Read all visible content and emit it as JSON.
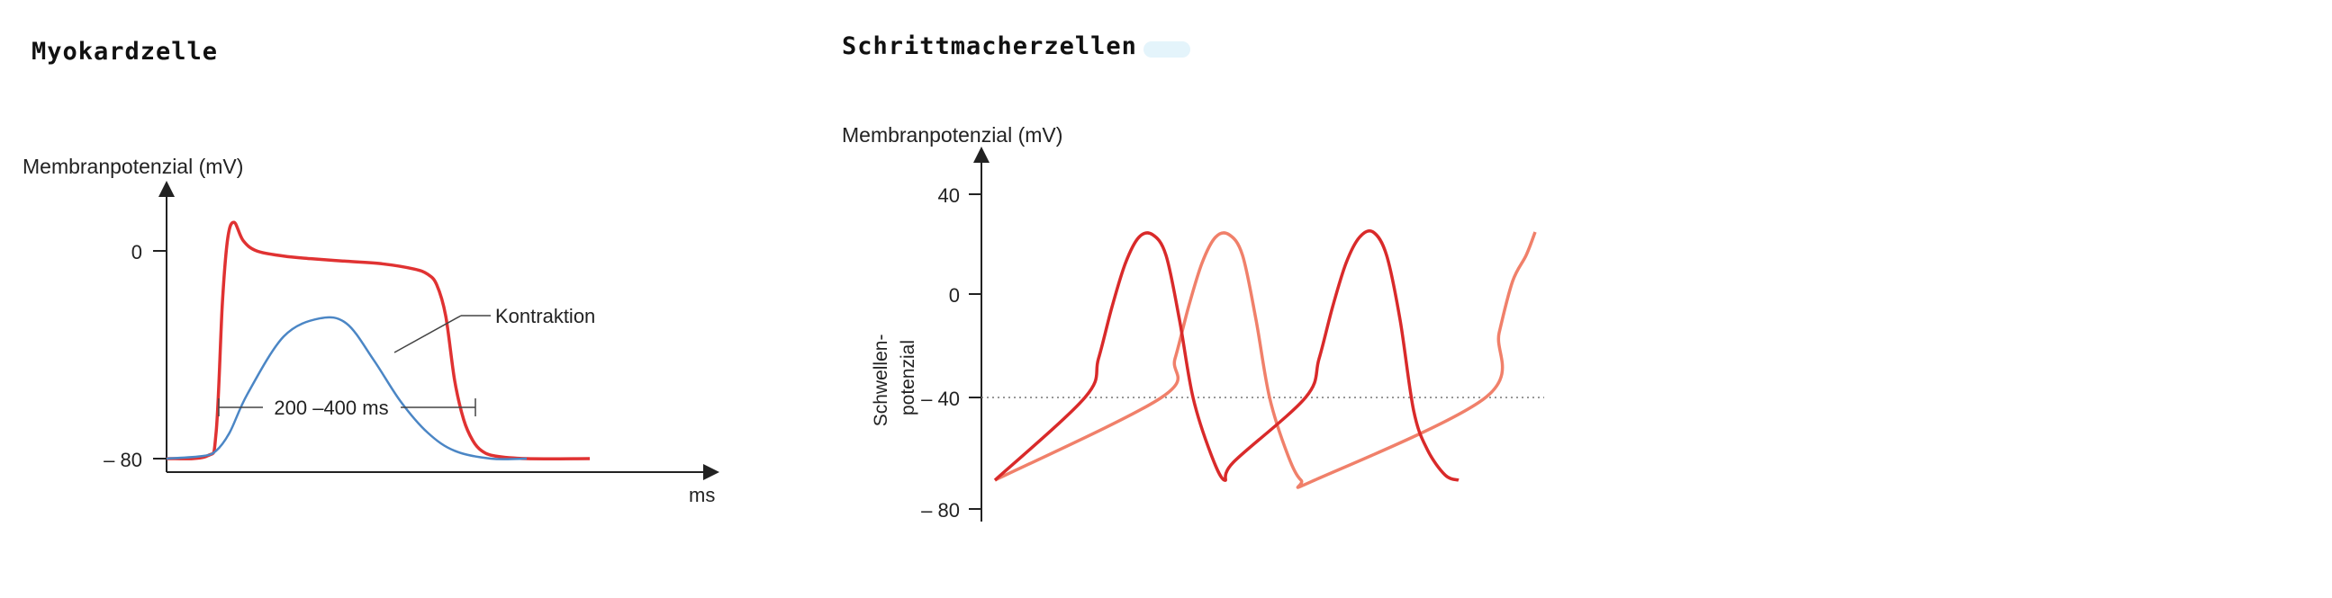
{
  "headings": {
    "left": "Myokardzelle",
    "right": "Schrittmacherzellen"
  },
  "chart_data": [
    {
      "type": "line",
      "title": "Myokardzelle",
      "ylabel": "Membranpotenzial (mV)",
      "xlabel": "ms",
      "yticks": [
        "0",
        "– 80"
      ],
      "annotations": {
        "curve_label": "Kontraktion",
        "duration": "200 –400 ms"
      },
      "colors": {
        "action_potential": "#e03232",
        "contraction": "#4b86c5"
      },
      "series": [
        {
          "key": "action_potential",
          "x": [
            0,
            45,
            55,
            62,
            68,
            75,
            85,
            100,
            130,
            160,
            200,
            240,
            275,
            290,
            300,
            310,
            320,
            330,
            340,
            350,
            365,
            400,
            470
          ],
          "y": [
            -80,
            -79,
            -70,
            -20,
            5,
            11,
            4,
            0,
            -2,
            -3,
            -4,
            -5,
            -7,
            -9,
            -13,
            -25,
            -50,
            -65,
            -73,
            -77,
            -79,
            -80,
            -80
          ]
        },
        {
          "key": "contraction",
          "x": [
            0,
            40,
            55,
            70,
            90,
            130,
            170,
            200,
            230,
            260,
            290,
            320,
            360,
            400
          ],
          "y": [
            -80,
            -79,
            -77,
            -70,
            -55,
            -33,
            -26,
            -28,
            -42,
            -58,
            -70,
            -77,
            -80,
            -80
          ]
        }
      ]
    },
    {
      "type": "line",
      "title": "Schrittmacherzellen",
      "ylabel": "Membranpotenzial (mV)",
      "yticks": [
        "40",
        "0",
        "– 40",
        "– 80"
      ],
      "threshold_label": "Schwellen-\npotenzial",
      "threshold": -40,
      "colors": {
        "cell_a": "#d92a2a",
        "cell_b": "#f0806a",
        "threshold": "#777777"
      },
      "series": [
        {
          "key": "cell_a",
          "x": [
            0,
            100,
            115,
            130,
            145,
            160,
            175,
            190,
            205,
            220,
            240,
            255,
            265,
            345,
            360,
            375,
            390,
            405,
            420,
            435,
            450,
            465,
            480,
            500,
            515
          ],
          "y": [
            -72,
            -40,
            -25,
            -5,
            12,
            22,
            23,
            15,
            -10,
            -40,
            -62,
            -72,
            -65,
            -40,
            -25,
            -5,
            12,
            22,
            24,
            15,
            -10,
            -45,
            -60,
            -70,
            -72
          ]
        },
        {
          "key": "cell_b",
          "x": [
            0,
            185,
            200,
            215,
            230,
            245,
            260,
            275,
            290,
            305,
            325,
            340,
            355,
            545,
            560,
            575,
            590,
            600
          ],
          "y": [
            -72,
            -40,
            -25,
            -5,
            12,
            22,
            23,
            15,
            -10,
            -40,
            -62,
            -72,
            -72,
            -40,
            -15,
            5,
            15,
            24
          ]
        }
      ]
    }
  ]
}
